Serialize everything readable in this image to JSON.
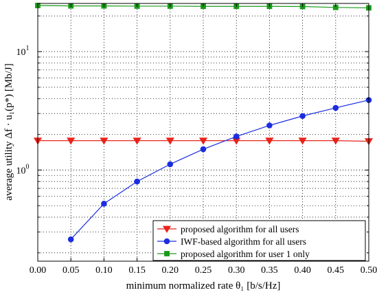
{
  "chart_data": {
    "type": "line",
    "xlabel": "minimum normalized rate θ₁ [b/s/Hz]",
    "ylabel": "average utility Δf · u₁(p*) [Mb/J]",
    "xlim": [
      0.0,
      0.5
    ],
    "ylim_log": [
      0.17,
      25.5
    ],
    "yscale": "log",
    "grid": true,
    "legend_position": "bottom-right",
    "x_ticks": [
      "0.00",
      "0.05",
      "0.10",
      "0.15",
      "0.20",
      "0.25",
      "0.30",
      "0.35",
      "0.40",
      "0.45",
      "0.50"
    ],
    "y_ticks": [
      {
        "value": 1,
        "mantissa": "10",
        "exponent": "0"
      },
      {
        "value": 10,
        "mantissa": "10",
        "exponent": "1"
      }
    ],
    "series": [
      {
        "name": "proposed algorithm for all users",
        "color": "#e8231a",
        "marker": "triangle-down",
        "x": [
          0.0,
          0.05,
          0.1,
          0.15,
          0.2,
          0.25,
          0.3,
          0.35,
          0.4,
          0.45,
          0.5
        ],
        "y": [
          1.77,
          1.77,
          1.77,
          1.77,
          1.77,
          1.77,
          1.77,
          1.77,
          1.77,
          1.77,
          1.75
        ]
      },
      {
        "name": "IWF-based algorithm for all users",
        "color": "#1a2de0",
        "marker": "circle",
        "x": [
          0.05,
          0.1,
          0.15,
          0.2,
          0.25,
          0.3,
          0.35,
          0.4,
          0.45,
          0.5
        ],
        "y": [
          0.26,
          0.52,
          0.8,
          1.12,
          1.5,
          1.92,
          2.38,
          2.86,
          3.35,
          3.9
        ]
      },
      {
        "name": "proposed algorithm for user 1 only",
        "color": "#1a9a1a",
        "marker": "square",
        "x": [
          0.0,
          0.05,
          0.1,
          0.15,
          0.2,
          0.25,
          0.3,
          0.35,
          0.4,
          0.45,
          0.5
        ],
        "y": [
          24.5,
          24.3,
          24.3,
          24.2,
          24.2,
          24.1,
          24.1,
          24.1,
          24.0,
          23.6,
          23.4
        ]
      }
    ]
  }
}
